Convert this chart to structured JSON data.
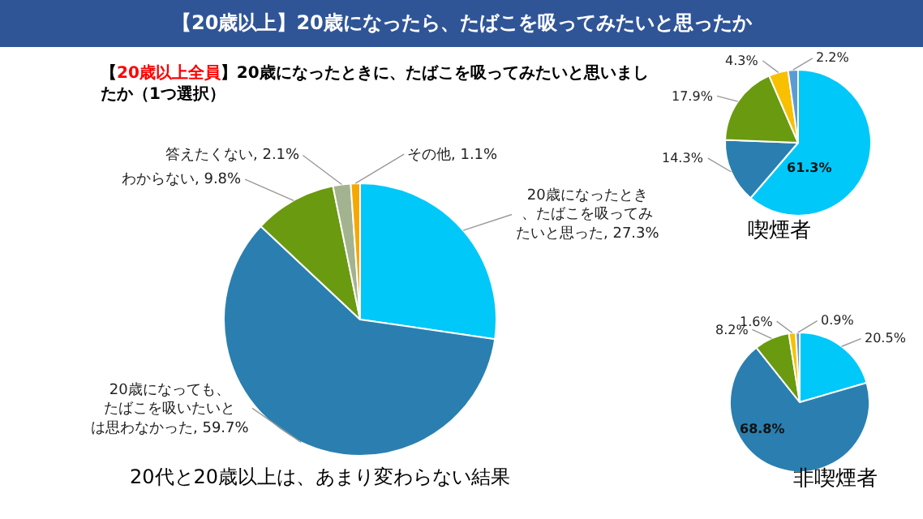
{
  "chart_data": [
    {
      "type": "pie",
      "title": "【20歳以上】20歳になったら、たばこを吸ってみたいと思ったか",
      "subtitle": "【20歳以上全員】20歳になったときに、たばこを吸ってみたいと思いましたか（1つ選択）",
      "categories": [
        "20歳になったとき、たばこを吸ってみたいと思った",
        "20歳になっても、たばこを吸いたいとは思わなかった",
        "わからない",
        "答えたくない",
        "その他"
      ],
      "values": [
        27.3,
        59.7,
        9.8,
        2.1,
        1.1
      ],
      "value_labels": [
        "27.3%",
        "59.7%",
        "9.8%",
        "2.1%",
        "1.1%"
      ],
      "colors": [
        "#00c8f8",
        "#2a7fb0",
        "#6a9a10",
        "#a3b38f",
        "#f5a800"
      ],
      "annotations": [
        "20代と20歳以上は、あまり変わらない結果"
      ]
    },
    {
      "type": "pie",
      "title": "喫煙者",
      "categories": [
        null,
        null,
        null,
        null,
        null
      ],
      "values": [
        61.3,
        14.3,
        17.9,
        4.3,
        2.2
      ],
      "value_labels": [
        "61.3%",
        "14.3%",
        "17.9%",
        "4.3%",
        "2.2%"
      ],
      "colors": [
        "#00c8f8",
        "#2a7fb0",
        "#6a9a10",
        "#f8c000",
        "#5b9bd5"
      ]
    },
    {
      "type": "pie",
      "title": "非喫煙者",
      "categories": [
        null,
        null,
        null,
        null,
        null
      ],
      "values": [
        20.5,
        68.8,
        8.2,
        1.6,
        0.9
      ],
      "value_labels": [
        "20.5%",
        "68.8%",
        "8.2%",
        "1.6%",
        "0.9%"
      ],
      "colors": [
        "#00c8f8",
        "#2a7fb0",
        "#6a9a10",
        "#f8c000",
        "#5b9bd5"
      ]
    }
  ]
}
